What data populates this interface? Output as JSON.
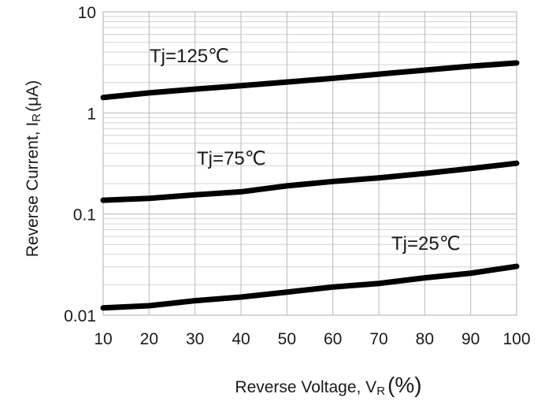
{
  "chart_data": {
    "type": "line",
    "xlabel": {
      "main": "Reverse Voltage, V",
      "sub": "R",
      "unit": "(%)"
    },
    "ylabel": {
      "main": "Reverse Current, I",
      "sub": "R",
      "unit": "(μA)"
    },
    "xlim": [
      10,
      100
    ],
    "ylim": [
      0.01,
      10
    ],
    "yscale": "log",
    "grid": true,
    "x_ticks": [
      "10",
      "20",
      "30",
      "40",
      "50",
      "60",
      "70",
      "80",
      "90",
      "100"
    ],
    "y_ticks": [
      {
        "value": 10,
        "label": "10"
      },
      {
        "value": 1,
        "label": "1"
      },
      {
        "value": 0.1,
        "label": "0.1"
      },
      {
        "value": 0.01,
        "label": "0.01"
      }
    ],
    "series": [
      {
        "name": "Tj=125℃",
        "x": [
          10,
          20,
          30,
          40,
          50,
          60,
          70,
          80,
          90,
          100
        ],
        "y": [
          1.42,
          1.58,
          1.72,
          1.86,
          2.02,
          2.2,
          2.42,
          2.65,
          2.9,
          3.12
        ]
      },
      {
        "name": "Tj=75℃",
        "x": [
          10,
          20,
          30,
          40,
          50,
          60,
          70,
          80,
          90,
          100
        ],
        "y": [
          0.137,
          0.143,
          0.155,
          0.166,
          0.19,
          0.21,
          0.228,
          0.252,
          0.282,
          0.318
        ]
      },
      {
        "name": "Tj=25℃",
        "x": [
          10,
          20,
          30,
          40,
          50,
          60,
          70,
          80,
          90,
          100
        ],
        "y": [
          0.0118,
          0.0124,
          0.0139,
          0.0151,
          0.0169,
          0.019,
          0.0206,
          0.0234,
          0.026,
          0.0304
        ]
      }
    ]
  }
}
